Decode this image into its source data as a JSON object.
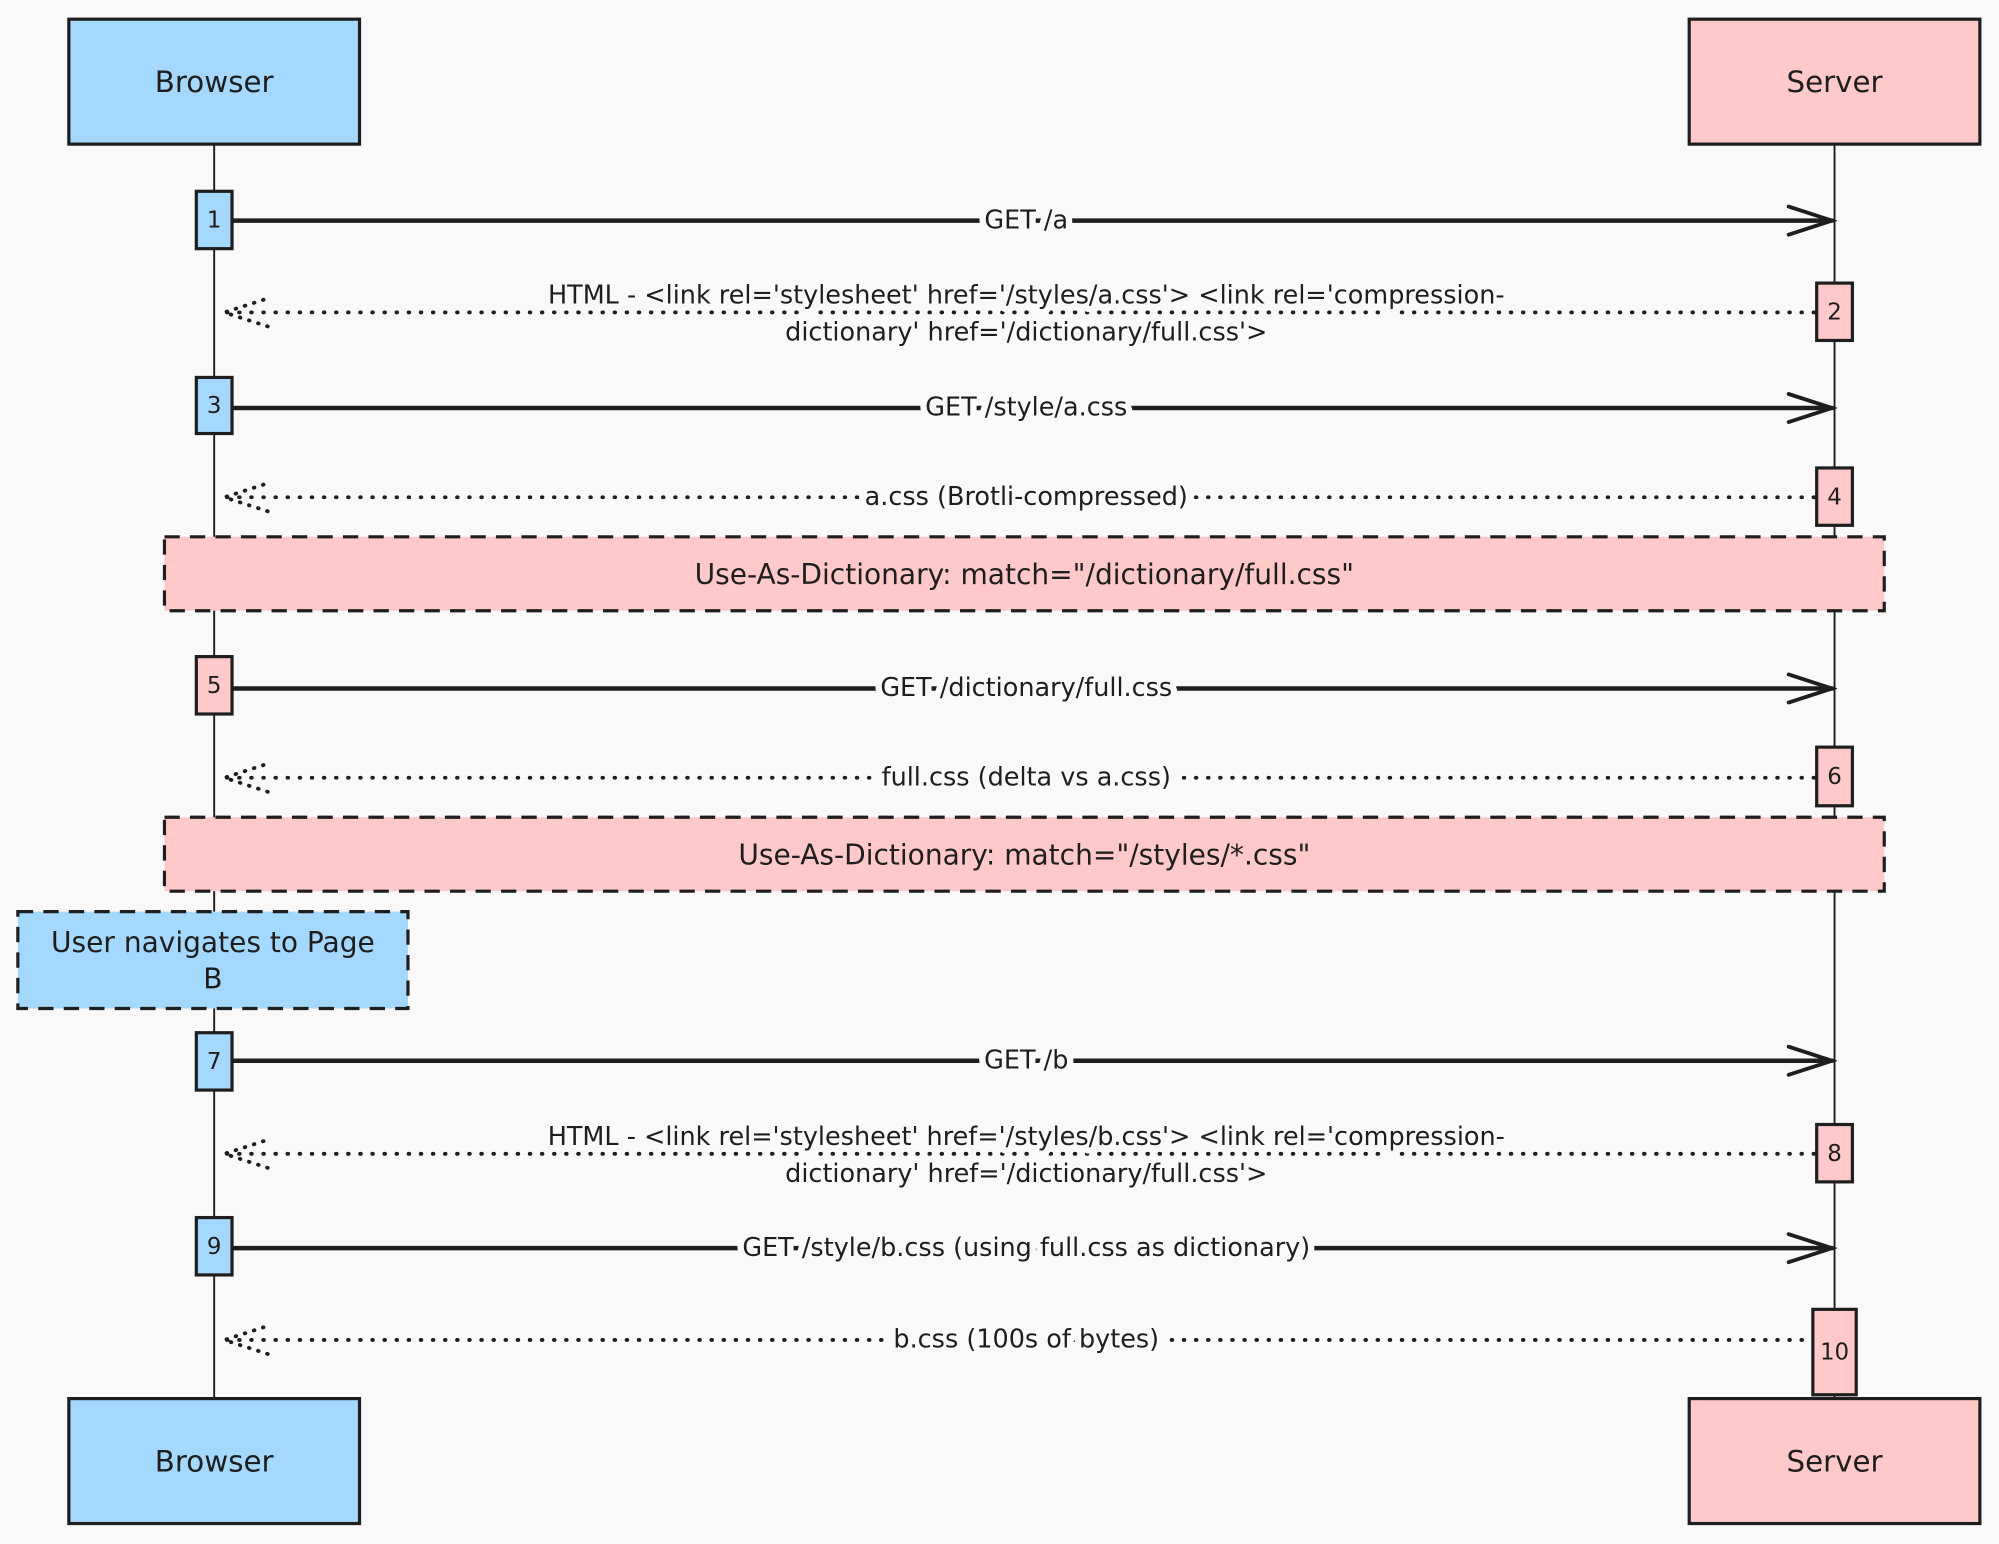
{
  "colors": {
    "browser": "#a5d8ff",
    "server": "#ffc9c9",
    "stroke": "#1e1e1e",
    "background": "#f9f9f9"
  },
  "actors": {
    "browser": "Browser",
    "server": "Server"
  },
  "messages": [
    {
      "step": "1",
      "from": "browser",
      "style": "solid",
      "box_color": "browser",
      "lines": [
        "GET /a"
      ]
    },
    {
      "step": "2",
      "from": "server",
      "style": "dotted",
      "box_color": "server",
      "lines": [
        "HTML - <link rel='stylesheet' href='/styles/a.css'> <link rel='compression-",
        "dictionary' href='/dictionary/full.css'>"
      ]
    },
    {
      "step": "3",
      "from": "browser",
      "style": "solid",
      "box_color": "browser",
      "lines": [
        "GET /style/a.css"
      ]
    },
    {
      "step": "4",
      "from": "server",
      "style": "dotted",
      "box_color": "server",
      "lines": [
        "a.css (Brotli-compressed)"
      ]
    },
    {
      "step": "5",
      "from": "browser",
      "style": "solid",
      "box_color": "server",
      "lines": [
        "GET /dictionary/full.css"
      ]
    },
    {
      "step": "6",
      "from": "server",
      "style": "dotted",
      "box_color": "server",
      "lines": [
        "full.css (delta vs a.css)"
      ]
    },
    {
      "step": "7",
      "from": "browser",
      "style": "solid",
      "box_color": "browser",
      "lines": [
        "GET /b"
      ]
    },
    {
      "step": "8",
      "from": "server",
      "style": "dotted",
      "box_color": "server",
      "lines": [
        "HTML - <link rel='stylesheet' href='/styles/b.css'> <link rel='compression-",
        "dictionary' href='/dictionary/full.css'>"
      ]
    },
    {
      "step": "9",
      "from": "browser",
      "style": "solid",
      "box_color": "browser",
      "lines": [
        "GET /style/b.css (using full.css as dictionary)"
      ]
    },
    {
      "step": "10",
      "from": "server",
      "style": "dotted",
      "box_color": "server",
      "lines": [
        "b.css (100s of bytes)"
      ]
    }
  ],
  "notes": [
    {
      "lines": [
        "Use-As-Dictionary: match=\"/dictionary/full.css\""
      ],
      "color": "server"
    },
    {
      "lines": [
        "Use-As-Dictionary: match=\"/styles/*.css\""
      ],
      "color": "server"
    },
    {
      "lines": [
        "User navigates to Page",
        "B"
      ],
      "color": "browser"
    }
  ]
}
